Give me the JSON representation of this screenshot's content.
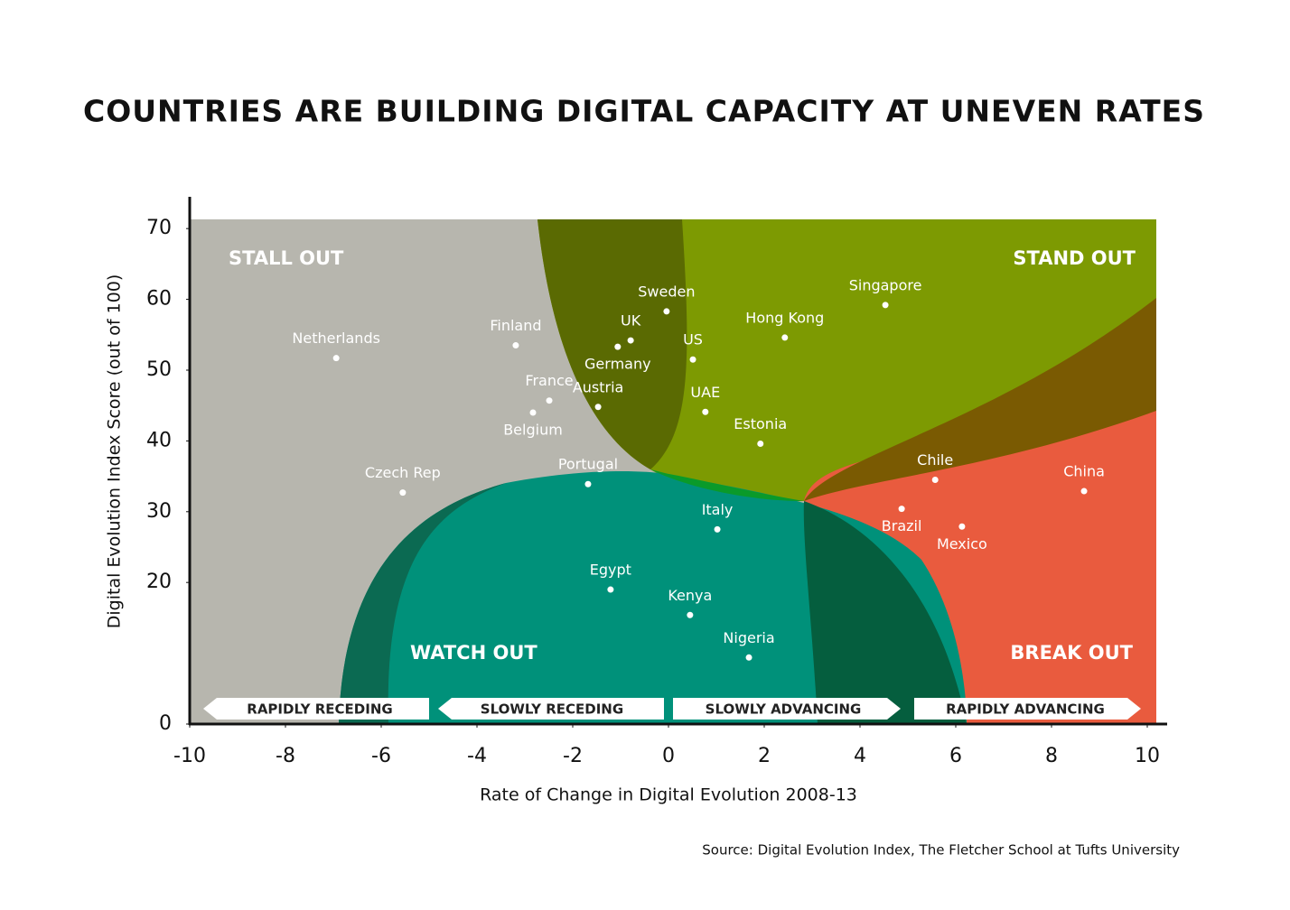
{
  "chart_data": {
    "type": "scatter",
    "title": "COUNTRIES ARE BUILDING DIGITAL CAPACITY AT UNEVEN RATES",
    "x_label": "Rate of Change in Digital Evolution 2008-13",
    "y_label": "Digital Evolution Index Score (out of 100)",
    "source": "Source: Digital Evolution Index, The Fletcher School at Tufts University",
    "point_color": "#ffffff",
    "labels": [
      "Netherlands",
      "Finland",
      "UK",
      "Germany",
      "Sweden",
      "US",
      "Singapore",
      "Hong Kong",
      "France",
      "Belgium",
      "Austria",
      "UAE",
      "Estonia",
      "Czech Rep",
      "Portugal",
      "Chile",
      "China",
      "Brazil",
      "Mexico",
      "Italy",
      "Egypt",
      "Kenya",
      "Nigeria"
    ],
    "x": [
      -6.94,
      -3.19,
      -0.79,
      -1.06,
      -0.04,
      0.51,
      4.53,
      2.43,
      -2.49,
      -2.83,
      -1.47,
      0.77,
      1.92,
      -5.55,
      -1.68,
      5.57,
      8.68,
      4.87,
      6.13,
      1.02,
      -1.21,
      0.45,
      1.68
    ],
    "y": [
      51.7,
      53.5,
      54.2,
      53.3,
      58.3,
      51.5,
      59.2,
      54.6,
      45.7,
      44.0,
      44.8,
      44.1,
      39.6,
      32.7,
      33.9,
      34.5,
      32.9,
      30.4,
      27.9,
      27.5,
      19.0,
      15.4,
      9.4
    ],
    "xlim": [
      -10,
      10
    ],
    "xticks": [
      -10,
      -8,
      -6,
      -4,
      -2,
      0,
      2,
      4,
      6,
      8,
      10
    ],
    "ylim": [
      0,
      71.3
    ],
    "yticks": [
      0,
      20,
      30,
      40,
      50,
      60,
      70
    ],
    "quadrants": [
      "STALL OUT",
      "STAND OUT",
      "WATCH OUT",
      "BREAK OUT"
    ],
    "bands": [
      "RAPIDLY RECEDING",
      "SLOWLY RECEDING",
      "SLOWLY ADVANCING",
      "RAPIDLY ADVANCING"
    ]
  }
}
